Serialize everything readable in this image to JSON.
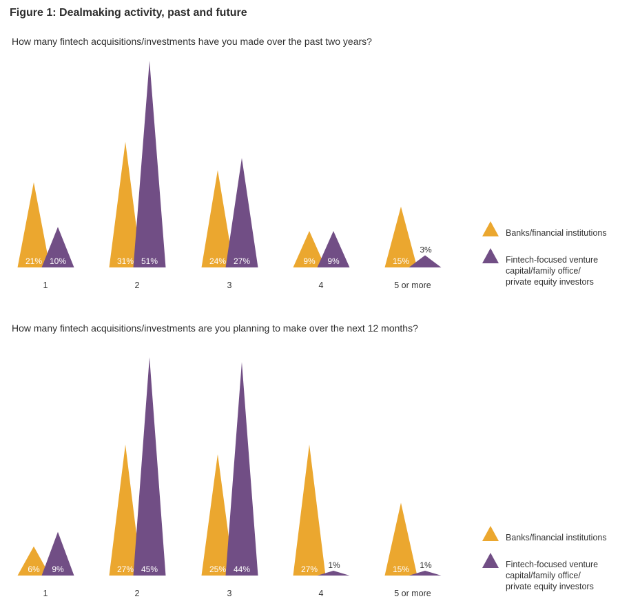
{
  "figure_title": "Figure 1: Dealmaking activity, past and future",
  "colors": {
    "banks": "#eba72f",
    "vc": "#714e85"
  },
  "chart_data": [
    {
      "type": "bar",
      "mark": "triangle",
      "title": "How many fintech acquisitions/investments have you made over the past two years?",
      "categories": [
        "1",
        "2",
        "3",
        "4",
        "5 or more"
      ],
      "series": [
        {
          "name": "Banks/financial institutions",
          "values": [
            21,
            31,
            24,
            9,
            15
          ],
          "labels": [
            "21%",
            "31%",
            "24%",
            "9%",
            "15%"
          ]
        },
        {
          "name": "Fintech-focused venture capital/family office/ private equity investors",
          "values": [
            10,
            51,
            27,
            9,
            3
          ],
          "labels": [
            "10%",
            "51%",
            "27%",
            "9%",
            "3%"
          ]
        }
      ],
      "unit": "%",
      "legend_position": "right",
      "legend": [
        "Banks/financial institutions",
        "Fintech-focused venture",
        "capital/family office/",
        "private equity investors"
      ]
    },
    {
      "type": "bar",
      "mark": "triangle",
      "title": "How many fintech acquisitions/investments are you planning to make over the next 12 months?",
      "categories": [
        "1",
        "2",
        "3",
        "4",
        "5 or more"
      ],
      "series": [
        {
          "name": "Banks/financial institutions",
          "values": [
            6,
            27,
            25,
            27,
            15
          ],
          "labels": [
            "6%",
            "27%",
            "25%",
            "27%",
            "15%"
          ]
        },
        {
          "name": "Fintech-focused venture capital/family office/ private equity investors",
          "values": [
            9,
            45,
            44,
            1,
            1
          ],
          "labels": [
            "9%",
            "45%",
            "44%",
            "1%",
            "1%"
          ]
        }
      ],
      "unit": "%",
      "legend_position": "right",
      "legend": [
        "Banks/financial institutions",
        "Fintech-focused venture",
        "capital/family office/",
        "private equity investors"
      ]
    }
  ]
}
